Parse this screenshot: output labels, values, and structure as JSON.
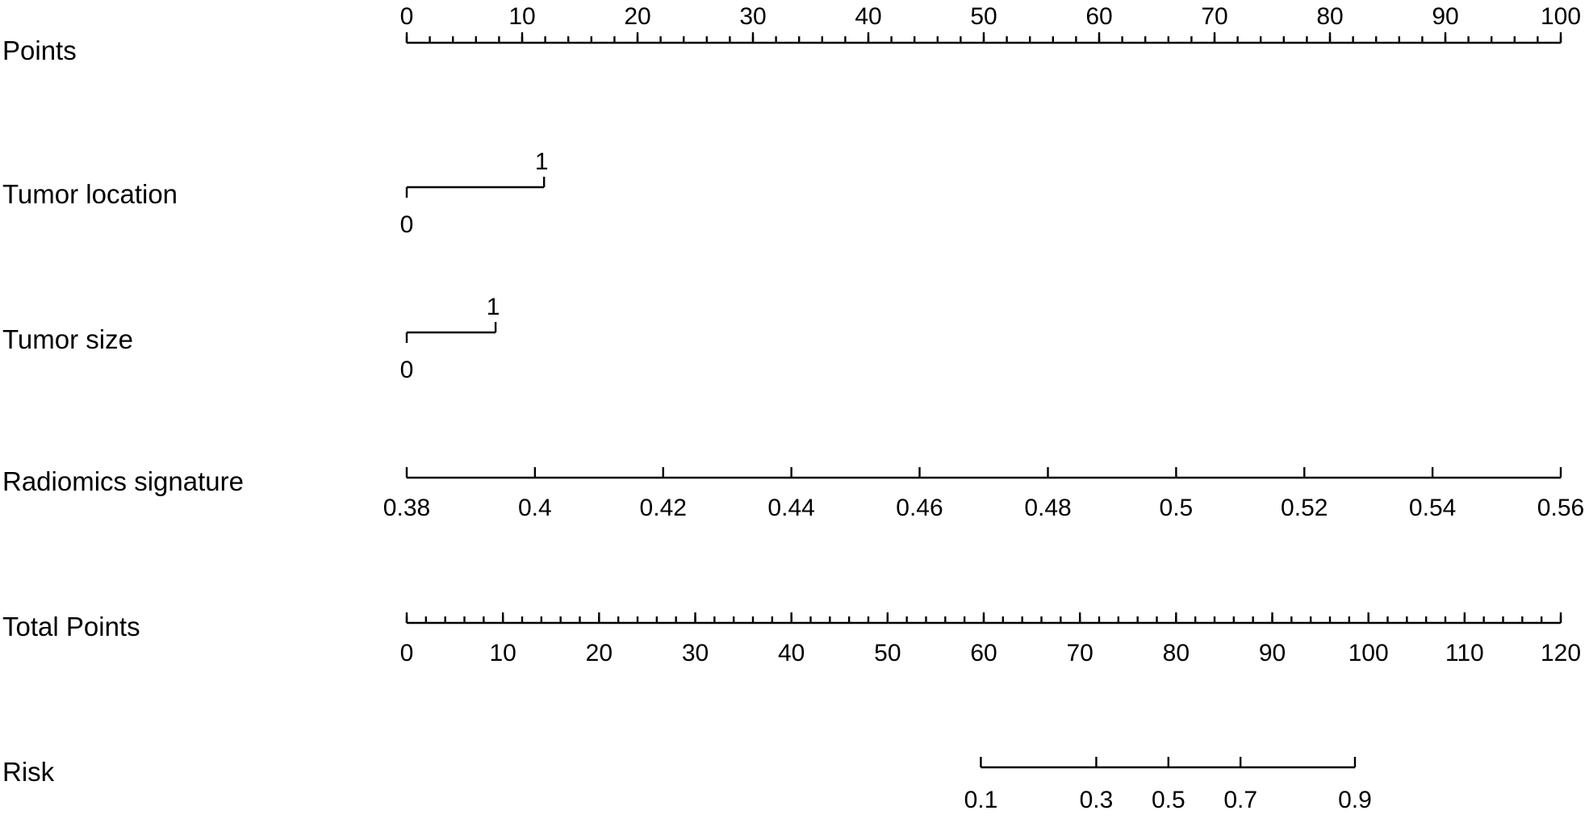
{
  "chart_data": {
    "type": "nomogram",
    "title": "",
    "colors": {
      "axis": "#000000",
      "background": "#ffffff"
    },
    "points_range": [
      0,
      100
    ],
    "rows": [
      {
        "label": "Points",
        "kind": "points",
        "tick_labels": [
          "0",
          "10",
          "20",
          "30",
          "40",
          "50",
          "60",
          "70",
          "80",
          "90",
          "100"
        ],
        "tick_values": [
          0,
          10,
          20,
          30,
          40,
          50,
          60,
          70,
          80,
          90,
          100
        ],
        "minor_step": 2,
        "label_side": "above"
      },
      {
        "label": "Tumor location",
        "kind": "categorical",
        "levels": [
          {
            "label": "0",
            "points": 0,
            "label_side": "below"
          },
          {
            "label": "1",
            "points": 11.9,
            "label_side": "above"
          }
        ]
      },
      {
        "label": "Tumor size",
        "kind": "categorical",
        "levels": [
          {
            "label": "0",
            "points": 0,
            "label_side": "below"
          },
          {
            "label": "1",
            "points": 7.7,
            "label_side": "above"
          }
        ]
      },
      {
        "label": "Radiomics signature",
        "kind": "continuous",
        "tick_labels": [
          "0.38",
          "0.4",
          "0.42",
          "0.44",
          "0.46",
          "0.48",
          "0.5",
          "0.52",
          "0.54",
          "0.56"
        ],
        "tick_values": [
          0.38,
          0.4,
          0.42,
          0.44,
          0.46,
          0.48,
          0.5,
          0.52,
          0.54,
          0.56
        ],
        "points_at": [
          0,
          11.11,
          22.22,
          33.33,
          44.44,
          55.56,
          66.67,
          77.78,
          88.89,
          100
        ],
        "label_side": "below"
      },
      {
        "label": "Total Points",
        "kind": "total",
        "tick_labels": [
          "0",
          "10",
          "20",
          "30",
          "40",
          "50",
          "60",
          "70",
          "80",
          "90",
          "100",
          "110",
          "120"
        ],
        "tick_values": [
          0,
          10,
          20,
          30,
          40,
          50,
          60,
          70,
          80,
          90,
          100,
          110,
          120
        ],
        "range": [
          0,
          120
        ],
        "minor_step": 2,
        "label_side": "below"
      },
      {
        "label": "Risk",
        "kind": "risk",
        "tick_labels": [
          "0.1",
          "0.3",
          "0.5",
          "0.7",
          "0.9"
        ],
        "tick_values": [
          0.1,
          0.3,
          0.5,
          0.7,
          0.9
        ],
        "total_points_at": [
          59.7,
          71.7,
          79.2,
          86.7,
          98.6
        ],
        "label_side": "below"
      }
    ]
  }
}
